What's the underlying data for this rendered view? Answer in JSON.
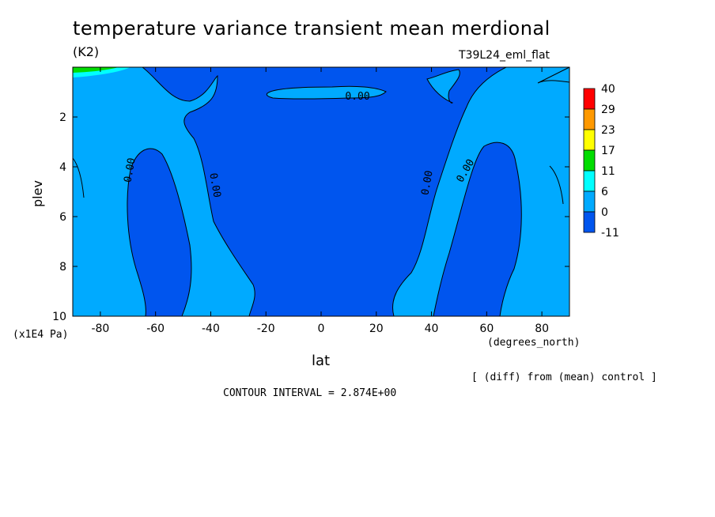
{
  "chart_data": {
    "type": "contour",
    "title": "temperature variance transient mean merdional",
    "units": "(K2)",
    "model_label": "T39L24_eml_flat",
    "xlabel": "lat",
    "ylabel": "plev",
    "x_units": "(degrees_north)",
    "y_units": "(x1E4 Pa)",
    "xlim": [
      -90,
      90
    ],
    "ylim": [
      10,
      0
    ],
    "x_ticks": [
      -80,
      -60,
      -40,
      -20,
      0,
      20,
      40,
      60,
      80
    ],
    "y_ticks": [
      2,
      4,
      6,
      8,
      10
    ],
    "contour_labels": [
      "0.00",
      "0.00",
      "0.00",
      "0.00",
      "0.00"
    ],
    "colorbar": {
      "levels": [
        "40",
        "29",
        "23",
        "17",
        "11",
        "6",
        "0",
        "-11"
      ],
      "colors": [
        "#ff0000",
        "#ff9900",
        "#ffff00",
        "#00dd00",
        "#00ffff",
        "#00aaff",
        "#0055ee"
      ]
    },
    "note": "[ (diff) from (mean) control ]",
    "contour_interval": "CONTOUR INTERVAL = 2.874E+00",
    "colors": {
      "dark_blue": "#0055ee",
      "light_blue": "#00aaff"
    }
  }
}
